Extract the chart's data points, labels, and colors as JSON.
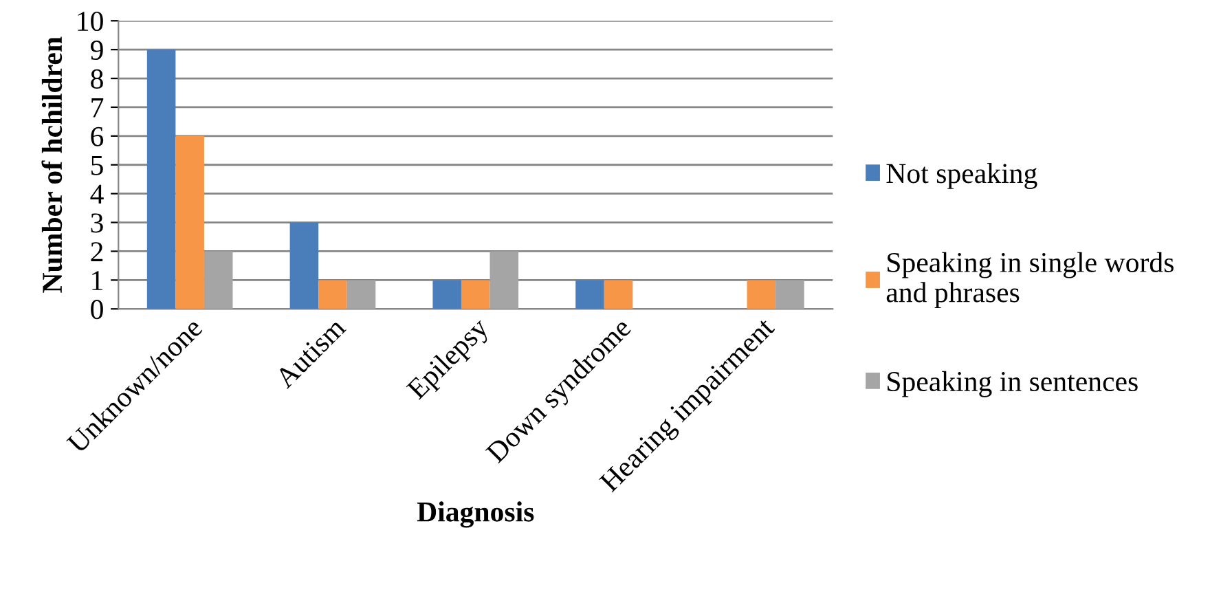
{
  "chart_data": {
    "type": "bar",
    "xlabel": "Diagnosis",
    "ylabel": "Number of hchildren",
    "categories": [
      "Unknown/none",
      "Autism",
      "Epilepsy",
      "Down syndrome",
      "Hearing impairment"
    ],
    "series": [
      {
        "name": "Not speaking",
        "color": "#4a7ebb",
        "values": [
          9,
          3,
          1,
          1,
          0
        ]
      },
      {
        "name": "Speaking in single words and phrases",
        "color": "#f79646",
        "values": [
          6,
          1,
          1,
          1,
          1
        ]
      },
      {
        "name": "Speaking in sentences",
        "color": "#a5a5a5",
        "values": [
          2,
          1,
          2,
          0,
          1
        ]
      }
    ],
    "ylim": [
      0,
      10
    ],
    "yticks": [
      0,
      1,
      2,
      3,
      4,
      5,
      6,
      7,
      8,
      9,
      10
    ],
    "grid": "y",
    "legend": "right"
  }
}
